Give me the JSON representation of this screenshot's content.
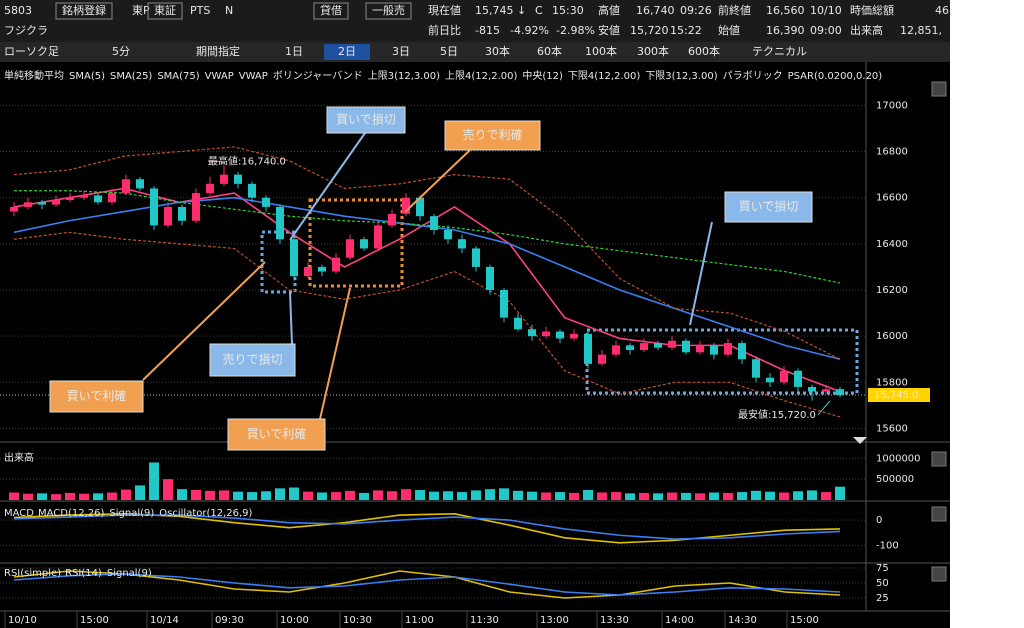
{
  "header": {
    "row1": [
      "5803",
      "銘柄登録",
      "東P",
      "東証",
      "PTS",
      "N",
      "貸借",
      "一般売",
      "現在値",
      "15,745 ↓",
      "C",
      "15:30",
      "高値",
      "16,740",
      "09:26",
      "前終値",
      "16,560",
      "10/10",
      "時価総額",
      "46,"
    ],
    "row2": [
      "フジクラ",
      "前日比",
      "-815",
      "-4.92%",
      "-2.98%",
      "安値",
      "15,720",
      "15:22",
      "始値",
      "16,390",
      "09:00",
      "出来高",
      "12,851,"
    ]
  },
  "toolbar": [
    "ローソク足",
    "5分",
    "期間指定",
    "1日",
    "2日",
    "3日",
    "5日",
    "30本",
    "60本",
    "100本",
    "300本",
    "600本",
    "テクニカル"
  ],
  "time_labels": [
    "10/10",
    "15:00",
    "10/14",
    "09:30",
    "10:00",
    "10:30",
    "11:00",
    "11:30",
    "13:00",
    "13:30",
    "14:00",
    "14:30",
    "15:00"
  ],
  "callouts": [
    "買いで損切",
    "売りで利確",
    "買いで損切",
    "売りで損切",
    "買いで利確",
    "買いで利確"
  ],
  "chart_data": [
    {
      "type": "candlestick",
      "up_color": "#ff2d6e",
      "down_color": "#22c8c8",
      "legend": [
        {
          "label": "単純移動平均",
          "color": "#ffffff"
        },
        {
          "label": "SMA(5)",
          "color": "#ff4080"
        },
        {
          "label": "SMA(25)",
          "color": "#4a90ff"
        },
        {
          "label": "SMA(75)",
          "color": "#d050d0"
        },
        {
          "label": "VWAP",
          "color": "#ffffff"
        },
        {
          "label": "VWAP",
          "color": "#40d040"
        },
        {
          "label": "ボリンジャーバンド",
          "color": "#ffffff"
        },
        {
          "label": "上限3(12,3.00)",
          "color": "#ff6040"
        },
        {
          "label": "上限4(12,2.00)",
          "color": "#4a90ff"
        },
        {
          "label": "中央(12)",
          "color": "#ff4080"
        },
        {
          "label": "下限4(12,2.00)",
          "color": "#4a90ff"
        },
        {
          "label": "下限3(12,3.00)",
          "color": "#ff6040"
        },
        {
          "label": "パラボリック",
          "color": "#ffffff"
        },
        {
          "label": "PSAR(0.0200,0.20)",
          "color": "#e0c000"
        }
      ],
      "candles": [
        [
          16540,
          16580,
          16520,
          16560
        ],
        [
          16560,
          16600,
          16550,
          16580
        ],
        [
          16580,
          16590,
          16550,
          16570
        ],
        [
          16570,
          16610,
          16560,
          16590
        ],
        [
          16590,
          16620,
          16580,
          16600
        ],
        [
          16600,
          16630,
          16590,
          16610
        ],
        [
          16610,
          16620,
          16570,
          16580
        ],
        [
          16580,
          16640,
          16570,
          16620
        ],
        [
          16620,
          16700,
          16610,
          16680
        ],
        [
          16680,
          16690,
          16630,
          16640
        ],
        [
          16640,
          16650,
          16460,
          16480
        ],
        [
          16480,
          16580,
          16470,
          16560
        ],
        [
          16560,
          16570,
          16480,
          16500
        ],
        [
          16500,
          16640,
          16490,
          16620
        ],
        [
          16620,
          16690,
          16610,
          16660
        ],
        [
          16660,
          16740,
          16650,
          16700
        ],
        [
          16700,
          16710,
          16640,
          16660
        ],
        [
          16660,
          16670,
          16580,
          16600
        ],
        [
          16600,
          16610,
          16540,
          16560
        ],
        [
          16560,
          16570,
          16400,
          16420
        ],
        [
          16420,
          16440,
          16240,
          16260
        ],
        [
          16260,
          16320,
          16250,
          16300
        ],
        [
          16300,
          16310,
          16260,
          16280
        ],
        [
          16280,
          16360,
          16270,
          16340
        ],
        [
          16340,
          16440,
          16330,
          16420
        ],
        [
          16420,
          16430,
          16370,
          16380
        ],
        [
          16380,
          16500,
          16370,
          16480
        ],
        [
          16480,
          16550,
          16470,
          16530
        ],
        [
          16530,
          16620,
          16520,
          16600
        ],
        [
          16600,
          16610,
          16500,
          16520
        ],
        [
          16520,
          16530,
          16440,
          16460
        ],
        [
          16460,
          16480,
          16400,
          16420
        ],
        [
          16420,
          16440,
          16360,
          16380
        ],
        [
          16380,
          16390,
          16280,
          16300
        ],
        [
          16300,
          16310,
          16180,
          16200
        ],
        [
          16200,
          16210,
          16060,
          16080
        ],
        [
          16080,
          16100,
          16020,
          16030
        ],
        [
          16030,
          16050,
          15980,
          16000
        ],
        [
          16000,
          16040,
          15990,
          16020
        ],
        [
          16020,
          16030,
          15970,
          15990
        ],
        [
          15990,
          16030,
          15980,
          16010
        ],
        [
          16010,
          16020,
          15860,
          15880
        ],
        [
          15880,
          15940,
          15870,
          15920
        ],
        [
          15920,
          15980,
          15910,
          15960
        ],
        [
          15960,
          15970,
          15920,
          15940
        ],
        [
          15940,
          15990,
          15930,
          15970
        ],
        [
          15970,
          15980,
          15940,
          15950
        ],
        [
          15950,
          16000,
          15940,
          15980
        ],
        [
          15980,
          15990,
          15920,
          15930
        ],
        [
          15930,
          15980,
          15920,
          15960
        ],
        [
          15960,
          15970,
          15900,
          15920
        ],
        [
          15920,
          15990,
          15910,
          15970
        ],
        [
          15970,
          15980,
          15880,
          15900
        ],
        [
          15900,
          15910,
          15800,
          15820
        ],
        [
          15820,
          15840,
          15780,
          15800
        ],
        [
          15800,
          15870,
          15790,
          15850
        ],
        [
          15850,
          15860,
          15760,
          15780
        ],
        [
          15780,
          15790,
          15720,
          15760
        ],
        [
          15760,
          15790,
          15750,
          15770
        ],
        [
          15770,
          15780,
          15735,
          15745
        ]
      ],
      "series": [
        {
          "color": "#ff4080",
          "values": [
            16560,
            16600,
            16640,
            16580,
            16620,
            16450,
            16300,
            16420,
            16560,
            16400,
            16080,
            15990,
            15960,
            15960,
            15850,
            15760
          ]
        },
        {
          "color": "#3a7ff0",
          "values": [
            16450,
            16500,
            16540,
            16580,
            16600,
            16560,
            16520,
            16490,
            16460,
            16400,
            16300,
            16200,
            16120,
            16040,
            15960,
            15900
          ]
        },
        {
          "color": "#30d030",
          "dash": true,
          "values": [
            16630,
            16630,
            16620,
            16580,
            16550,
            16520,
            16500,
            16490,
            16470,
            16440,
            16400,
            16370,
            16340,
            16310,
            16280,
            16230
          ]
        },
        {
          "color": "#c0502a",
          "dash": true,
          "values": [
            16700,
            16720,
            16780,
            16800,
            16820,
            16760,
            16640,
            16660,
            16700,
            16680,
            16500,
            16250,
            16120,
            16100,
            16020,
            15900
          ]
        },
        {
          "color": "#c0502a",
          "dash": true,
          "values": [
            16420,
            16450,
            16420,
            16400,
            16380,
            16200,
            16160,
            16200,
            16280,
            16150,
            15850,
            15750,
            15800,
            15800,
            15720,
            15650
          ]
        }
      ],
      "ylim": [
        15550,
        17110
      ],
      "yticks": [
        17000,
        16800,
        16600,
        16400,
        16200,
        16000,
        15800,
        15600
      ],
      "annotations": [
        "最高値:16,740.0",
        "最安値:15,720.0"
      ],
      "last_label": "15,745.0",
      "last": 15745,
      "high": 16740,
      "low": 15720
    },
    {
      "type": "bar",
      "title": "出来高",
      "up_color": "#ff2d6e",
      "down_color": "#22c8c8",
      "values": [
        180000,
        150000,
        160000,
        140000,
        170000,
        150000,
        160000,
        180000,
        250000,
        350000,
        900000,
        500000,
        260000,
        240000,
        220000,
        230000,
        200000,
        190000,
        210000,
        280000,
        300000,
        200000,
        180000,
        190000,
        220000,
        170000,
        230000,
        210000,
        260000,
        240000,
        200000,
        210000,
        190000,
        230000,
        260000,
        280000,
        220000,
        200000,
        180000,
        190000,
        170000,
        240000,
        180000,
        190000,
        160000,
        170000,
        160000,
        180000,
        170000,
        160000,
        180000,
        170000,
        190000,
        220000,
        200000,
        180000,
        210000,
        230000,
        190000,
        320000
      ],
      "ylim": [
        0,
        1200000
      ],
      "yticks": [
        1000000,
        500000
      ]
    },
    {
      "type": "line",
      "title": "MACD",
      "legend": [
        {
          "label": "MACD(12,26)",
          "color": "#e0c000"
        },
        {
          "label": "Signal(9)",
          "color": "#3a7ff0"
        },
        {
          "label": "Oscillator(12,26,9)",
          "color": "#ff2d6e"
        }
      ],
      "series": [
        {
          "color": "#e0c000",
          "values": [
            10,
            20,
            25,
            15,
            -10,
            -30,
            -10,
            20,
            25,
            -20,
            -70,
            -90,
            -80,
            -60,
            -40,
            -35
          ]
        },
        {
          "color": "#3a7ff0",
          "values": [
            5,
            12,
            20,
            20,
            8,
            -10,
            -15,
            0,
            12,
            0,
            -35,
            -60,
            -75,
            -70,
            -55,
            -45
          ]
        }
      ],
      "ylim": [
        -170,
        60
      ],
      "yticks": [
        0,
        -100
      ]
    },
    {
      "type": "line",
      "title": "RSI(simple)",
      "legend": [
        {
          "label": "RSI(14)",
          "color": "#e0c000"
        },
        {
          "label": "Signal(9)",
          "color": "#3a7ff0"
        }
      ],
      "series": [
        {
          "color": "#e0c000",
          "values": [
            60,
            70,
            65,
            55,
            40,
            35,
            50,
            70,
            60,
            35,
            25,
            30,
            45,
            50,
            35,
            30
          ]
        },
        {
          "color": "#3a7ff0",
          "values": [
            55,
            62,
            65,
            60,
            50,
            42,
            45,
            55,
            60,
            48,
            35,
            30,
            35,
            42,
            40,
            35
          ]
        }
      ],
      "ylim": [
        5,
        80
      ],
      "yticks": [
        75,
        50,
        25
      ]
    }
  ]
}
